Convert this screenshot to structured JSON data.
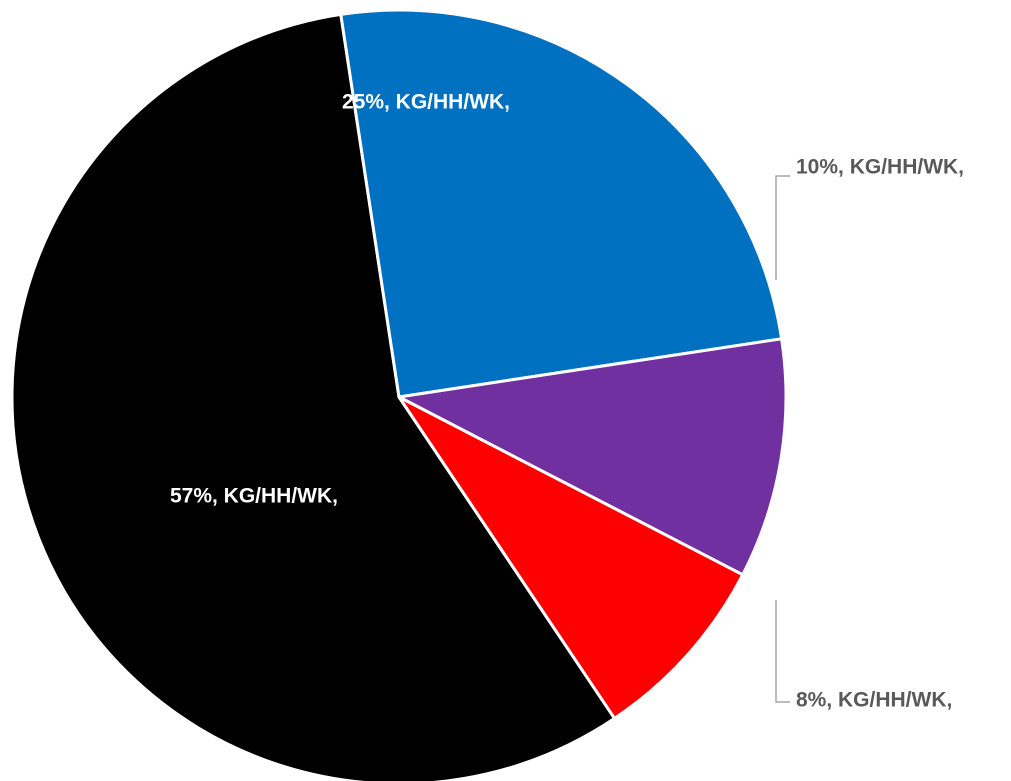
{
  "chart_data": {
    "type": "pie",
    "slices": [
      {
        "value": 57,
        "label": "57%, KG/HH/WK,",
        "color": "#000000",
        "label_color": "#ffffff",
        "label_style": "inside"
      },
      {
        "value": 25,
        "label": "25%, KG/HH/WK,",
        "color": "#0070C0",
        "label_color": "#ffffff",
        "label_style": "inside"
      },
      {
        "value": 10,
        "label": "10%, KG/HH/WK,",
        "color": "#7030A0",
        "label_color": "#595959",
        "label_style": "callout"
      },
      {
        "value": 8,
        "label": "8%, KG/HH/WK,",
        "color": "#FF0000",
        "label_color": "#595959",
        "label_style": "callout"
      }
    ],
    "slice_border_color": "#ffffff",
    "leader_line_color": "#a6a6a6"
  }
}
